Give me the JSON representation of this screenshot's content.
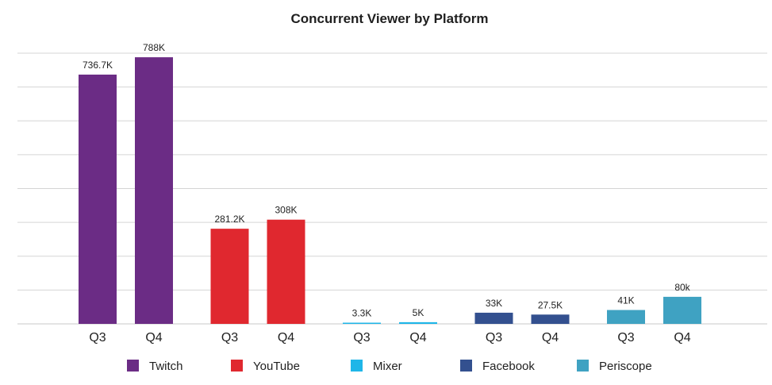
{
  "chart_data": {
    "type": "bar",
    "title": "Concurrent Viewer by Platform",
    "xlabel": "",
    "ylabel": "",
    "ylim": [
      0,
      800000
    ],
    "grid": true,
    "legend_position": "bottom",
    "groups": [
      {
        "platform": "Twitch",
        "color": "#6b2c85",
        "bars": [
          {
            "category": "Q3",
            "value": 736700,
            "label": "736.7K"
          },
          {
            "category": "Q4",
            "value": 788000,
            "label": "788K"
          }
        ]
      },
      {
        "platform": "YouTube",
        "color": "#e0282f",
        "bars": [
          {
            "category": "Q3",
            "value": 281200,
            "label": "281.2K"
          },
          {
            "category": "Q4",
            "value": 308000,
            "label": "308K"
          }
        ]
      },
      {
        "platform": "Mixer",
        "color": "#1fb6e8",
        "bars": [
          {
            "category": "Q3",
            "value": 3300,
            "label": "3.3K"
          },
          {
            "category": "Q4",
            "value": 5000,
            "label": "5K"
          }
        ]
      },
      {
        "platform": "Facebook",
        "color": "#33508f",
        "bars": [
          {
            "category": "Q3",
            "value": 33000,
            "label": "33K"
          },
          {
            "category": "Q4",
            "value": 27500,
            "label": "27.5K"
          }
        ]
      },
      {
        "platform": "Periscope",
        "color": "#3fa2c2",
        "bars": [
          {
            "category": "Q3",
            "value": 41000,
            "label": "41K"
          },
          {
            "category": "Q4",
            "value": 80000,
            "label": "80k"
          }
        ]
      }
    ]
  }
}
